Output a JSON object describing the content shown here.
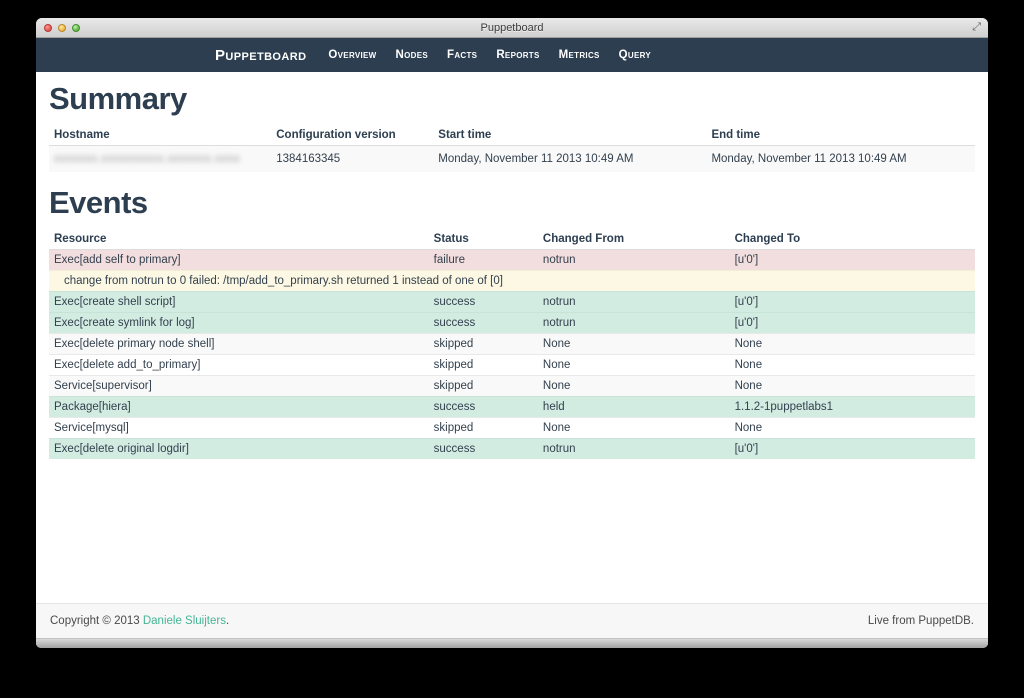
{
  "window": {
    "title": "Puppetboard"
  },
  "navbar": {
    "brand": "Puppetboard",
    "items": [
      {
        "label": "Overview"
      },
      {
        "label": "Nodes"
      },
      {
        "label": "Facts"
      },
      {
        "label": "Reports"
      },
      {
        "label": "Metrics"
      },
      {
        "label": "Query"
      }
    ]
  },
  "summary": {
    "heading": "Summary",
    "columns": [
      "Hostname",
      "Configuration version",
      "Start time",
      "End time"
    ],
    "row": {
      "hostname_redacted_placeholder": "xxxxxxx.xxxxxxxxxx.xxxxxxx.xxxx",
      "configuration_version": "1384163345",
      "start_time": "Monday, November 11 2013 10:49 AM",
      "end_time": "Monday, November 11 2013 10:49 AM"
    }
  },
  "events": {
    "heading": "Events",
    "columns": [
      "Resource",
      "Status",
      "Changed From",
      "Changed To"
    ],
    "rows": [
      {
        "type": "failure",
        "resource": "Exec[add self to primary]",
        "status": "failure",
        "changed_from": "notrun",
        "changed_to": "[u'0']"
      },
      {
        "type": "message",
        "message": "change from notrun to 0 failed: /tmp/add_to_primary.sh returned 1 instead of one of [0]"
      },
      {
        "type": "success",
        "resource": "Exec[create shell script]",
        "status": "success",
        "changed_from": "notrun",
        "changed_to": "[u'0']"
      },
      {
        "type": "success",
        "resource": "Exec[create symlink for log]",
        "status": "success",
        "changed_from": "notrun",
        "changed_to": "[u'0']"
      },
      {
        "type": "odd",
        "resource": "Exec[delete primary node shell]",
        "status": "skipped",
        "changed_from": "None",
        "changed_to": "None"
      },
      {
        "type": "even",
        "resource": "Exec[delete add_to_primary]",
        "status": "skipped",
        "changed_from": "None",
        "changed_to": "None"
      },
      {
        "type": "odd",
        "resource": "Service[supervisor]",
        "status": "skipped",
        "changed_from": "None",
        "changed_to": "None"
      },
      {
        "type": "success",
        "resource": "Package[hiera]",
        "status": "success",
        "changed_from": "held",
        "changed_to": "1.1.2-1puppetlabs1"
      },
      {
        "type": "even",
        "resource": "Service[mysql]",
        "status": "skipped",
        "changed_from": "None",
        "changed_to": "None"
      },
      {
        "type": "success",
        "resource": "Exec[delete original logdir]",
        "status": "success",
        "changed_from": "notrun",
        "changed_to": "[u'0']"
      }
    ]
  },
  "footer": {
    "copyright_prefix": "Copyright © 2013 ",
    "copyright_link": "Daniele Sluijters",
    "copyright_suffix": ".",
    "right_text": "Live from PuppetDB."
  },
  "colors": {
    "navbar": "#2c3e50",
    "heading": "#2c3e50",
    "failure_row": "#f2dede",
    "message_row": "#fcf8e3",
    "success_row": "#d3ece2",
    "stripe_row": "#f9f9f9",
    "link": "#45b693"
  }
}
